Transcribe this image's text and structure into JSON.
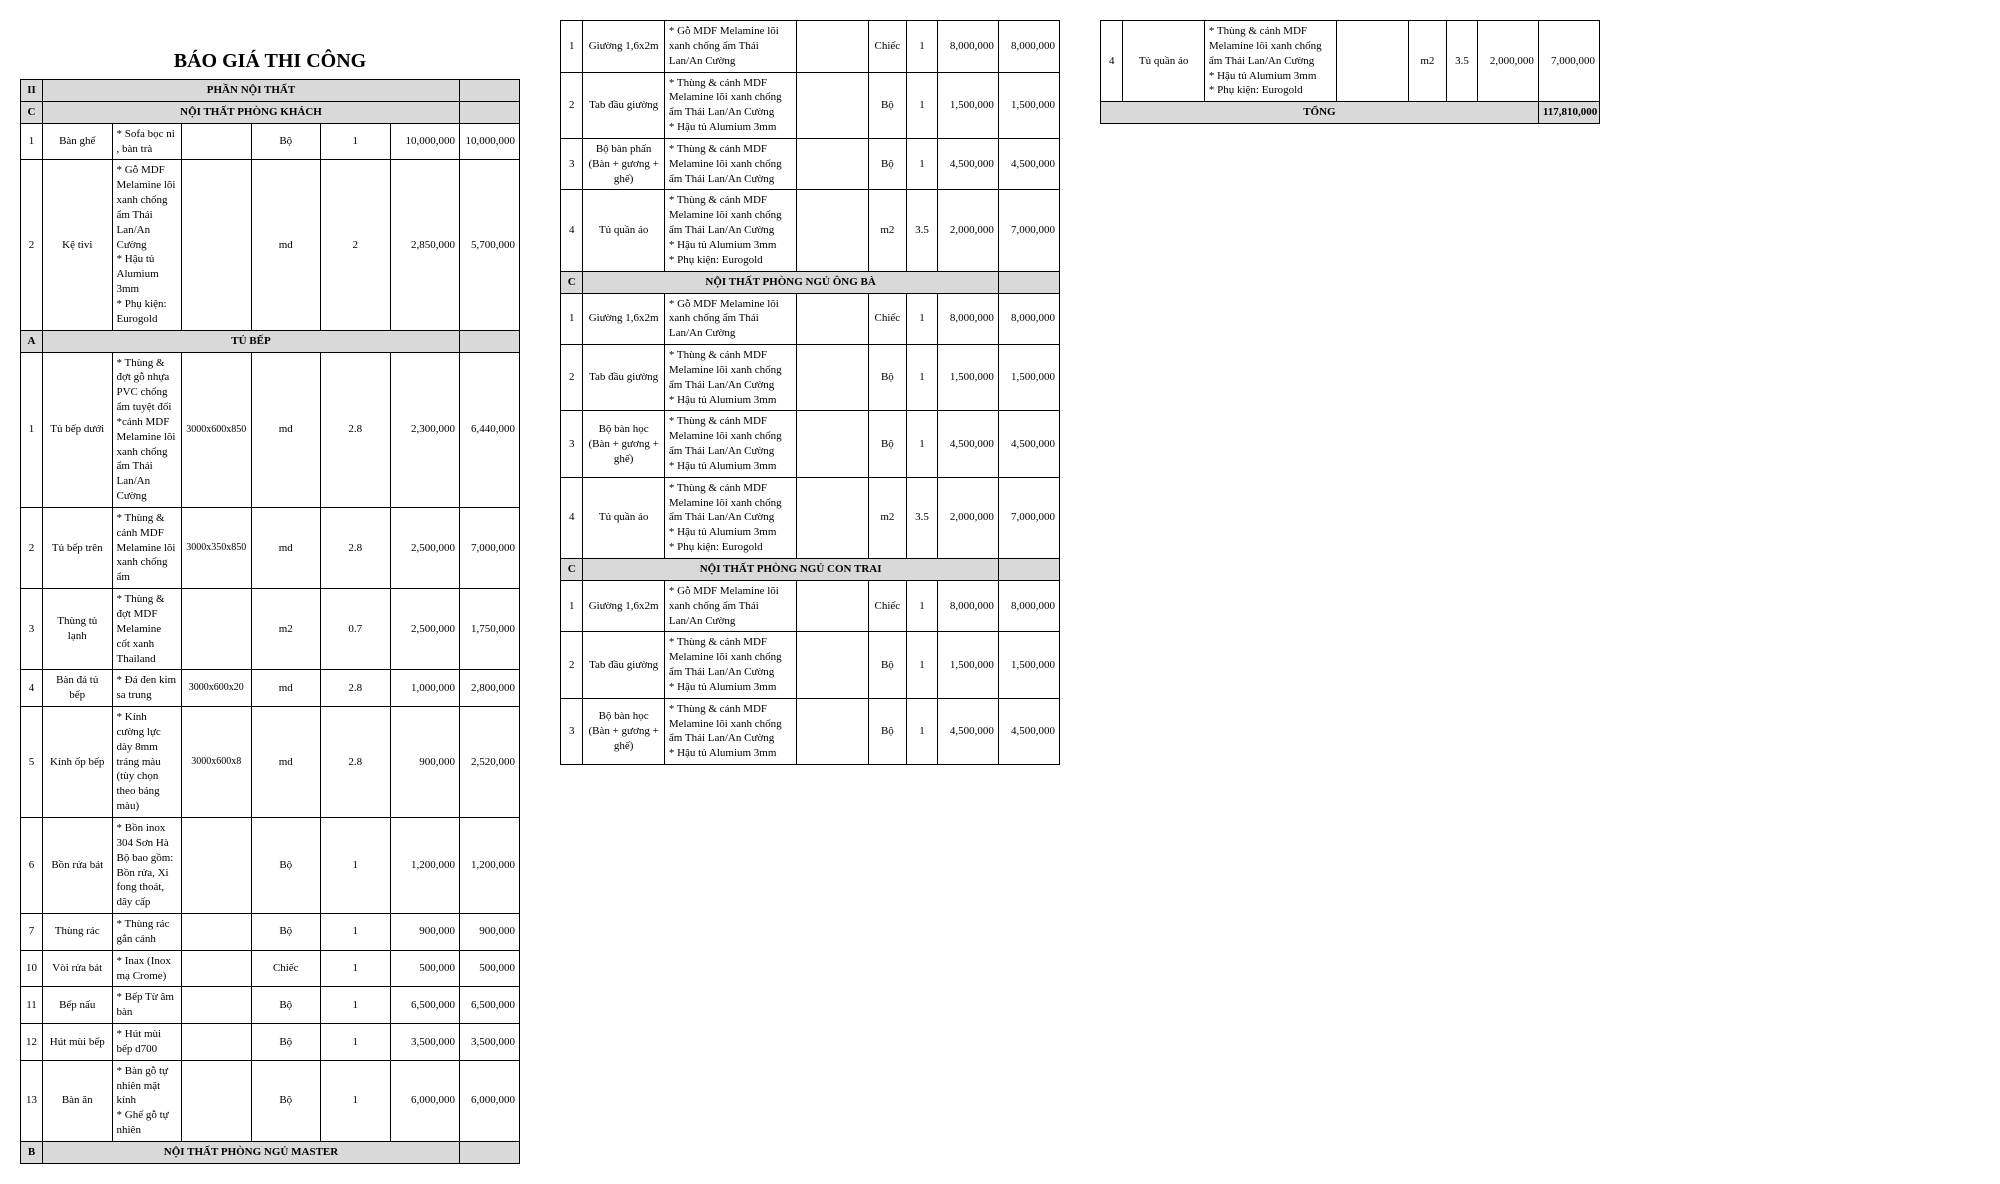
{
  "title": "BÁO GIÁ THI CÔNG",
  "grand_total_label": "TỔNG",
  "grand_total": "117,810,000",
  "columns": [
    {
      "key": "idx",
      "class": "c-idx"
    },
    {
      "key": "name",
      "class": "c-name"
    },
    {
      "key": "detail",
      "class": "c-detail"
    },
    {
      "key": "size",
      "class": "c-size"
    },
    {
      "key": "unit",
      "class": "c-unit"
    },
    {
      "key": "qty",
      "class": "c-qty"
    },
    {
      "key": "price",
      "class": "c-price"
    },
    {
      "key": "total",
      "class": "c-total"
    }
  ],
  "colors": {
    "header_bg": "#d9d9d9",
    "border": "#000000",
    "text": "#000000",
    "page_bg": "#ffffff"
  },
  "typography": {
    "title_size_pt": 20,
    "body_size_pt": 11,
    "font_family": "Times New Roman"
  },
  "sections_col1": [
    {
      "type": "header_major",
      "idx": "II",
      "label": "PHẦN NỘI THẤT"
    },
    {
      "type": "header_sub",
      "idx": "C",
      "label": "NỘI THẤT PHÒNG KHÁCH"
    },
    {
      "type": "row",
      "idx": "1",
      "name": "Bàn ghế",
      "detail": "* Sofa bọc nỉ , bàn trà",
      "size": "",
      "unit": "Bộ",
      "qty": "1",
      "price": "10,000,000",
      "total": "10,000,000"
    },
    {
      "type": "row",
      "idx": "2",
      "name": "Kệ tivi",
      "detail": "* Gỗ MDF Melamine lõi xanh chống ẩm Thái Lan/An Cường\n* Hậu tủ Alumium 3mm\n* Phụ kiện: Eurogold",
      "size": "",
      "unit": "md",
      "qty": "2",
      "price": "2,850,000",
      "total": "5,700,000"
    },
    {
      "type": "header_sub",
      "idx": "A",
      "label": "TỦ BẾP"
    },
    {
      "type": "row",
      "idx": "1",
      "name": "Tủ bếp dưới",
      "detail": "* Thùng & đợt gỗ nhựa PVC chống ẩm tuyệt đối\n*cánh MDF Melamine lõi xanh chống ẩm Thái Lan/An Cường",
      "size": "3000x600x850",
      "unit": "md",
      "qty": "2.8",
      "price": "2,300,000",
      "total": "6,440,000"
    },
    {
      "type": "row",
      "idx": "2",
      "name": "Tủ bếp trên",
      "detail": "* Thùng & cánh MDF Melamine lõi xanh chống ẩm",
      "size": "3000x350x850",
      "unit": "md",
      "qty": "2.8",
      "price": "2,500,000",
      "total": "7,000,000"
    },
    {
      "type": "row",
      "idx": "3",
      "name": "Thùng tủ lạnh",
      "detail": "* Thùng & đợt MDF Melamine cốt xanh Thailand",
      "size": "",
      "unit": "m2",
      "qty": "0.7",
      "price": "2,500,000",
      "total": "1,750,000"
    },
    {
      "type": "row",
      "idx": "4",
      "name": "Bàn đá tủ bếp",
      "detail": "* Đá đen kim sa trung",
      "size": "3000x600x20",
      "unit": "md",
      "qty": "2.8",
      "price": "1,000,000",
      "total": "2,800,000"
    },
    {
      "type": "row",
      "idx": "5",
      "name": "Kính ốp bếp",
      "detail": "* Kính cường lực dày 8mm tráng màu (tùy chọn theo bảng màu)",
      "size": "3000x600x8",
      "unit": "md",
      "qty": "2.8",
      "price": "900,000",
      "total": "2,520,000"
    },
    {
      "type": "row",
      "idx": "6",
      "name": "Bồn rửa bát",
      "detail": "* Bồn inox 304 Sơn Hà\nBộ bao gồm: Bồn rửa, Xi fong thoát, dây cấp",
      "size": "",
      "unit": "Bộ",
      "qty": "1",
      "price": "1,200,000",
      "total": "1,200,000"
    },
    {
      "type": "row",
      "idx": "7",
      "name": "Thùng rác",
      "detail": "* Thùng rác gắn cánh",
      "size": "",
      "unit": "Bộ",
      "qty": "1",
      "price": "900,000",
      "total": "900,000"
    },
    {
      "type": "row",
      "idx": "10",
      "name": "Vòi rửa bát",
      "detail": "* Inax (Inox mạ Crome)",
      "size": "",
      "unit": "Chiếc",
      "qty": "1",
      "price": "500,000",
      "total": "500,000"
    },
    {
      "type": "row",
      "idx": "11",
      "name": "Bếp nấu",
      "detail": "* Bếp Từ âm bàn",
      "size": "",
      "unit": "Bộ",
      "qty": "1",
      "price": "6,500,000",
      "total": "6,500,000"
    },
    {
      "type": "row",
      "idx": "12",
      "name": "Hút mùi bếp",
      "detail": "* Hút mùi bếp d700",
      "size": "",
      "unit": "Bộ",
      "qty": "1",
      "price": "3,500,000",
      "total": "3,500,000"
    },
    {
      "type": "row",
      "idx": "13",
      "name": "Bàn ăn",
      "detail": "* Bàn gỗ tự nhiên mặt kính\n* Ghế gỗ tự nhiên",
      "size": "",
      "unit": "Bộ",
      "qty": "1",
      "price": "6,000,000",
      "total": "6,000,000"
    },
    {
      "type": "header_sub",
      "idx": "B",
      "label": "NỘI THẤT PHÒNG NGỦ MASTER"
    }
  ],
  "sections_col2": [
    {
      "type": "row",
      "idx": "1",
      "name": "Giường 1,6x2m",
      "detail": "* Gỗ MDF Melamine lõi xanh chống ẩm Thái Lan/An Cường",
      "size": "",
      "unit": "Chiếc",
      "qty": "1",
      "price": "8,000,000",
      "total": "8,000,000"
    },
    {
      "type": "row",
      "idx": "2",
      "name": "Tab đầu giường",
      "detail": "* Thùng & cánh MDF Melamine lõi xanh chống ẩm Thái Lan/An Cường\n* Hậu tủ Alumium 3mm",
      "size": "",
      "unit": "Bộ",
      "qty": "1",
      "price": "1,500,000",
      "total": "1,500,000"
    },
    {
      "type": "row",
      "idx": "3",
      "name": "Bộ bàn phấn (Bàn + gương + ghế)",
      "detail": "* Thùng & cánh MDF Melamine lõi xanh chống ẩm Thái Lan/An Cường",
      "size": "",
      "unit": "Bộ",
      "qty": "1",
      "price": "4,500,000",
      "total": "4,500,000"
    },
    {
      "type": "row",
      "idx": "4",
      "name": "Tủ quần áo",
      "detail": "* Thùng & cánh MDF Melamine lõi xanh chống ẩm Thái Lan/An Cường\n* Hậu tủ Alumium 3mm\n* Phụ kiện: Eurogold",
      "size": "",
      "unit": "m2",
      "qty": "3.5",
      "price": "2,000,000",
      "total": "7,000,000"
    },
    {
      "type": "header_sub",
      "idx": "C",
      "label": "NỘI THẤT PHÒNG NGỦ ÔNG BÀ"
    },
    {
      "type": "row",
      "idx": "1",
      "name": "Giường 1,6x2m",
      "detail": "* Gỗ MDF Melamine lõi xanh chống ẩm Thái Lan/An Cường",
      "size": "",
      "unit": "Chiếc",
      "qty": "1",
      "price": "8,000,000",
      "total": "8,000,000"
    },
    {
      "type": "row",
      "idx": "2",
      "name": "Tab đầu giường",
      "detail": "* Thùng & cánh MDF Melamine lõi xanh chống ẩm Thái Lan/An Cường\n* Hậu tủ Alumium 3mm",
      "size": "",
      "unit": "Bộ",
      "qty": "1",
      "price": "1,500,000",
      "total": "1,500,000"
    },
    {
      "type": "row",
      "idx": "3",
      "name": "Bộ bàn học (Bàn + gương + ghế)",
      "detail": "* Thùng & cánh MDF Melamine lõi xanh chống ẩm Thái Lan/An Cường\n* Hậu tủ Alumium 3mm",
      "size": "",
      "unit": "Bộ",
      "qty": "1",
      "price": "4,500,000",
      "total": "4,500,000"
    },
    {
      "type": "row",
      "idx": "4",
      "name": "Tủ quần áo",
      "detail": "* Thùng & cánh MDF Melamine lõi xanh chống ẩm Thái Lan/An Cường\n* Hậu tủ Alumium 3mm\n* Phụ kiện: Eurogold",
      "size": "",
      "unit": "m2",
      "qty": "3.5",
      "price": "2,000,000",
      "total": "7,000,000"
    },
    {
      "type": "header_sub",
      "idx": "C",
      "label": "NỘI THẤT PHÒNG NGỦ CON TRAI"
    },
    {
      "type": "row",
      "idx": "1",
      "name": "Giường 1,6x2m",
      "detail": "* Gỗ MDF Melamine lõi xanh chống ẩm Thái Lan/An Cường",
      "size": "",
      "unit": "Chiếc",
      "qty": "1",
      "price": "8,000,000",
      "total": "8,000,000"
    },
    {
      "type": "row",
      "idx": "2",
      "name": "Tab đầu giường",
      "detail": "* Thùng & cánh MDF Melamine lõi xanh chống ẩm Thái Lan/An Cường\n* Hậu tủ Alumium 3mm",
      "size": "",
      "unit": "Bộ",
      "qty": "1",
      "price": "1,500,000",
      "total": "1,500,000"
    },
    {
      "type": "row",
      "idx": "3",
      "name": "Bộ bàn học (Bàn + gương + ghế)",
      "detail": "* Thùng & cánh MDF Melamine lõi xanh chống ẩm Thái Lan/An Cường\n* Hậu tủ Alumium 3mm",
      "size": "",
      "unit": "Bộ",
      "qty": "1",
      "price": "4,500,000",
      "total": "4,500,000"
    }
  ],
  "sections_col3": [
    {
      "type": "row",
      "idx": "4",
      "name": "Tủ quần áo",
      "detail": "* Thùng & cánh MDF Melamine lõi xanh chống ẩm Thái Lan/An Cường\n* Hậu tủ Alumium 3mm\n* Phụ kiện: Eurogold",
      "size": "",
      "unit": "m2",
      "qty": "3.5",
      "price": "2,000,000",
      "total": "7,000,000"
    },
    {
      "type": "total"
    }
  ]
}
